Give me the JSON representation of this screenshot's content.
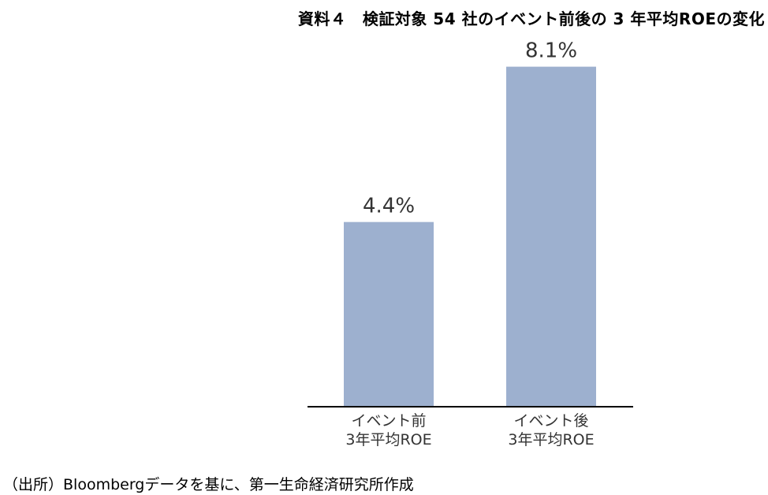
{
  "title": "資料４　検証対象 54 社のイベント前後の 3 年平均ROEの変化",
  "source": "（出所）Bloombergデータを基に、第一生命経済研究所作成",
  "colors": {
    "bar": "#9db0cf",
    "axis": "#000000",
    "label": "#333333"
  },
  "chart_data": {
    "type": "bar",
    "title": "資料４　検証対象 54 社のイベント前後の 3 年平均ROEの変化",
    "categories": [
      [
        "イベント前",
        "3年平均ROE"
      ],
      [
        "イベント後",
        "3年平均ROE"
      ]
    ],
    "values": [
      4.4,
      8.1
    ],
    "data_labels": [
      "4.4%",
      "8.1%"
    ],
    "unit": "%",
    "ylim": [
      0,
      8.9
    ],
    "grid": false,
    "legend": "none"
  }
}
